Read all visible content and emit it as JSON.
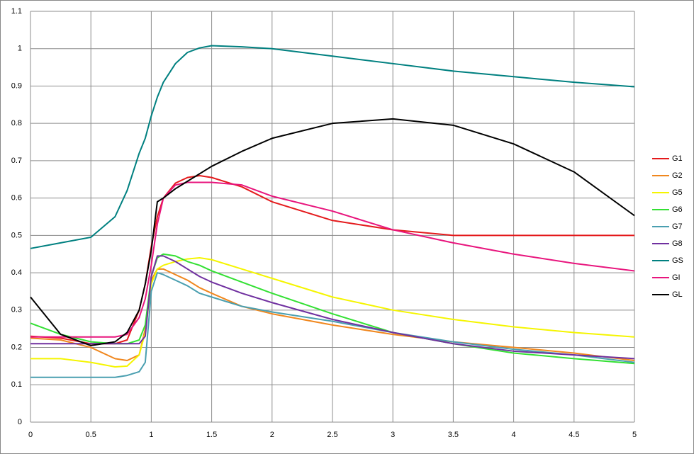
{
  "chart_data": {
    "type": "line",
    "x": [
      0,
      0.25,
      0.5,
      0.7,
      0.8,
      0.9,
      0.95,
      1,
      1.05,
      1.1,
      1.2,
      1.3,
      1.4,
      1.5,
      1.75,
      2,
      2.5,
      3,
      3.5,
      4,
      4.5,
      5
    ],
    "series": [
      {
        "name": "G1",
        "color": "#e41a1c",
        "values": [
          0.23,
          0.225,
          0.21,
          0.21,
          0.22,
          0.3,
          0.37,
          0.47,
          0.55,
          0.6,
          0.64,
          0.655,
          0.66,
          0.655,
          0.63,
          0.59,
          0.54,
          0.515,
          0.5,
          0.5,
          0.5,
          0.5
        ]
      },
      {
        "name": "G2",
        "color": "#f0871e",
        "values": [
          0.225,
          0.22,
          0.2,
          0.17,
          0.165,
          0.18,
          0.25,
          0.38,
          0.41,
          0.41,
          0.395,
          0.38,
          0.36,
          0.345,
          0.31,
          0.29,
          0.26,
          0.235,
          0.215,
          0.2,
          0.185,
          0.165
        ]
      },
      {
        "name": "G5",
        "color": "#f5f500",
        "values": [
          0.17,
          0.17,
          0.16,
          0.148,
          0.15,
          0.18,
          0.24,
          0.37,
          0.41,
          0.42,
          0.43,
          0.437,
          0.44,
          0.435,
          0.41,
          0.385,
          0.335,
          0.3,
          0.275,
          0.255,
          0.24,
          0.228
        ]
      },
      {
        "name": "G6",
        "color": "#33e033",
        "values": [
          0.265,
          0.235,
          0.215,
          0.21,
          0.21,
          0.22,
          0.26,
          0.39,
          0.44,
          0.45,
          0.445,
          0.43,
          0.42,
          0.405,
          0.375,
          0.345,
          0.29,
          0.24,
          0.21,
          0.185,
          0.17,
          0.157
        ]
      },
      {
        "name": "G7",
        "color": "#4a9fb0",
        "values": [
          0.12,
          0.12,
          0.12,
          0.12,
          0.125,
          0.135,
          0.16,
          0.35,
          0.4,
          0.395,
          0.38,
          0.365,
          0.345,
          0.335,
          0.31,
          0.295,
          0.27,
          0.24,
          0.215,
          0.195,
          0.18,
          0.16
        ]
      },
      {
        "name": "G8",
        "color": "#7030a0",
        "values": [
          0.21,
          0.21,
          0.21,
          0.21,
          0.21,
          0.21,
          0.23,
          0.39,
          0.445,
          0.445,
          0.43,
          0.41,
          0.39,
          0.375,
          0.345,
          0.32,
          0.275,
          0.24,
          0.21,
          0.19,
          0.18,
          0.17
        ]
      },
      {
        "name": "GS",
        "color": "#008080",
        "values": [
          0.465,
          0.48,
          0.495,
          0.55,
          0.62,
          0.72,
          0.76,
          0.82,
          0.87,
          0.91,
          0.96,
          0.99,
          1.002,
          1.008,
          1.005,
          1.0,
          0.98,
          0.96,
          0.94,
          0.925,
          0.91,
          0.898
        ]
      },
      {
        "name": "GI",
        "color": "#e8157d",
        "values": [
          0.228,
          0.228,
          0.228,
          0.228,
          0.235,
          0.28,
          0.33,
          0.42,
          0.53,
          0.6,
          0.635,
          0.642,
          0.642,
          0.642,
          0.635,
          0.605,
          0.565,
          0.515,
          0.48,
          0.45,
          0.425,
          0.405
        ]
      },
      {
        "name": "GL",
        "color": "#000000",
        "values": [
          0.335,
          0.235,
          0.205,
          0.215,
          0.24,
          0.3,
          0.37,
          0.46,
          0.59,
          0.6,
          0.625,
          0.645,
          0.665,
          0.685,
          0.725,
          0.76,
          0.8,
          0.812,
          0.795,
          0.745,
          0.67,
          0.553
        ]
      }
    ],
    "xlim": [
      0,
      5
    ],
    "xticks": [
      0,
      0.5,
      1,
      1.5,
      2,
      2.5,
      3,
      3.5,
      4,
      4.5,
      5
    ],
    "ylim": [
      0,
      1.1
    ],
    "yticks": [
      0,
      0.1,
      0.2,
      0.3,
      0.4,
      0.5,
      0.6,
      0.7,
      0.8,
      0.9,
      1,
      1.1
    ],
    "grid": true,
    "legend": "right"
  }
}
